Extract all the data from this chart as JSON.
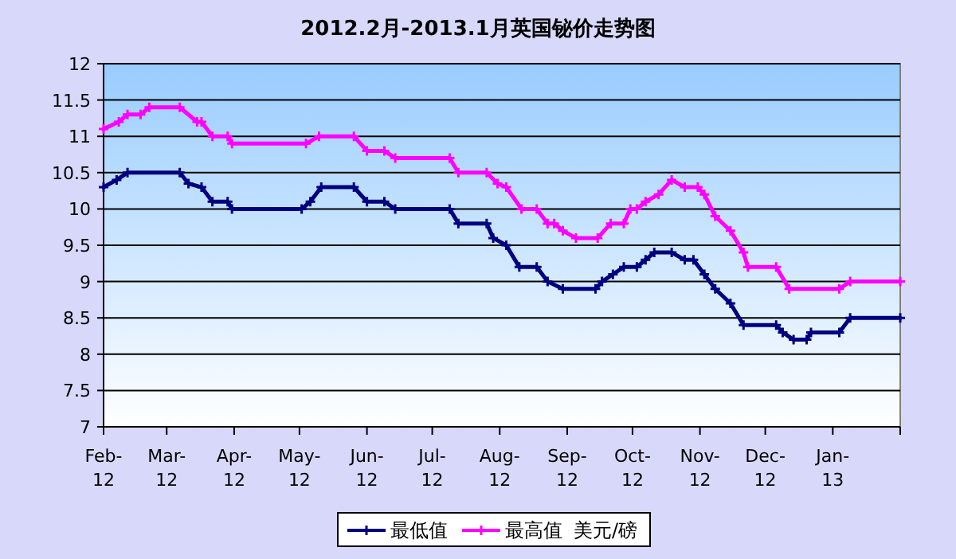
{
  "chart_data": {
    "type": "line",
    "title": "2012.2月-2013.1月英国铋价走势图",
    "annotations": [
      "美元/磅"
    ],
    "xlim": [
      "2012-02-01",
      "2013-02-01"
    ],
    "xticks": [
      {
        "value": "2012-02-01",
        "label": "Feb-12"
      },
      {
        "value": "2012-03-01",
        "label": "Mar-12"
      },
      {
        "value": "2012-04-01",
        "label": "Apr-12"
      },
      {
        "value": "2012-05-01",
        "label": "May-12"
      },
      {
        "value": "2012-06-01",
        "label": "Jun-12"
      },
      {
        "value": "2012-07-01",
        "label": "Jul-12"
      },
      {
        "value": "2012-08-01",
        "label": "Aug-12"
      },
      {
        "value": "2012-09-01",
        "label": "Sep-12"
      },
      {
        "value": "2012-10-01",
        "label": "Oct-12"
      },
      {
        "value": "2012-11-01",
        "label": "Nov-12"
      },
      {
        "value": "2012-12-01",
        "label": "Dec-12"
      },
      {
        "value": "2013-01-01",
        "label": "Jan-13"
      },
      {
        "value": "2013-02-01",
        "label": null
      }
    ],
    "ylim": [
      7,
      12
    ],
    "yticks": [
      7,
      7.5,
      8,
      8.5,
      9,
      9.5,
      10,
      10.5,
      11,
      11.5,
      12
    ],
    "grid": "y",
    "legend": "bottom",
    "marker": "cross",
    "line_style": "solid",
    "series": [
      {
        "name": "最低值",
        "color": "#000080",
        "x": [
          "2012-02-01",
          "2012-02-07",
          "2012-02-12",
          "2012-03-07",
          "2012-03-11",
          "2012-03-17",
          "2012-03-22",
          "2012-03-29",
          "2012-03-31",
          "2012-05-02",
          "2012-05-06",
          "2012-05-11",
          "2012-05-26",
          "2012-06-01",
          "2012-06-09",
          "2012-06-14",
          "2012-07-09",
          "2012-07-13",
          "2012-07-26",
          "2012-07-29",
          "2012-08-04",
          "2012-08-10",
          "2012-08-18",
          "2012-08-23",
          "2012-08-30",
          "2012-09-14",
          "2012-09-17",
          "2012-09-22",
          "2012-09-27",
          "2012-10-03",
          "2012-10-07",
          "2012-10-11",
          "2012-10-19",
          "2012-10-25",
          "2012-10-29",
          "2012-11-03",
          "2012-11-08",
          "2012-11-15",
          "2012-11-21",
          "2012-12-06",
          "2012-12-09",
          "2012-12-14",
          "2012-12-20",
          "2012-12-22",
          "2013-01-04",
          "2013-01-09",
          "2013-02-01"
        ],
        "values": [
          10.3,
          10.4,
          10.5,
          10.5,
          10.35,
          10.3,
          10.1,
          10.1,
          10.0,
          10.0,
          10.1,
          10.3,
          10.3,
          10.1,
          10.1,
          10.0,
          10.0,
          9.8,
          9.8,
          9.6,
          9.5,
          9.2,
          9.2,
          9.0,
          8.9,
          8.9,
          9.0,
          9.1,
          9.2,
          9.2,
          9.3,
          9.4,
          9.4,
          9.3,
          9.3,
          9.1,
          8.9,
          8.7,
          8.4,
          8.4,
          8.3,
          8.2,
          8.2,
          8.3,
          8.3,
          8.5,
          8.5
        ]
      },
      {
        "name": "最高值",
        "color": "#ff00ff",
        "x": [
          "2012-02-01",
          "2012-02-08",
          "2012-02-12",
          "2012-02-18",
          "2012-02-22",
          "2012-03-07",
          "2012-03-15",
          "2012-03-17",
          "2012-03-22",
          "2012-03-29",
          "2012-03-31",
          "2012-05-04",
          "2012-05-10",
          "2012-05-26",
          "2012-06-01",
          "2012-06-09",
          "2012-06-14",
          "2012-07-09",
          "2012-07-13",
          "2012-07-26",
          "2012-07-31",
          "2012-08-04",
          "2012-08-11",
          "2012-08-18",
          "2012-08-23",
          "2012-08-26",
          "2012-08-30",
          "2012-09-05",
          "2012-09-15",
          "2012-09-21",
          "2012-09-27",
          "2012-09-30",
          "2012-10-03",
          "2012-10-07",
          "2012-10-13",
          "2012-10-19",
          "2012-10-25",
          "2012-10-31",
          "2012-11-03",
          "2012-11-08",
          "2012-11-15",
          "2012-11-21",
          "2012-11-23",
          "2012-12-06",
          "2012-12-12",
          "2013-01-04",
          "2013-01-09",
          "2013-02-01"
        ],
        "values": [
          11.1,
          11.2,
          11.3,
          11.3,
          11.4,
          11.4,
          11.2,
          11.2,
          11.0,
          11.0,
          10.9,
          10.9,
          11.0,
          11.0,
          10.8,
          10.8,
          10.7,
          10.7,
          10.5,
          10.5,
          10.35,
          10.3,
          10.0,
          10.0,
          9.8,
          9.8,
          9.7,
          9.6,
          9.6,
          9.8,
          9.8,
          10.0,
          10.0,
          10.1,
          10.2,
          10.4,
          10.3,
          10.3,
          10.2,
          9.9,
          9.7,
          9.4,
          9.2,
          9.2,
          8.9,
          8.9,
          9.0,
          9.0
        ]
      }
    ]
  }
}
